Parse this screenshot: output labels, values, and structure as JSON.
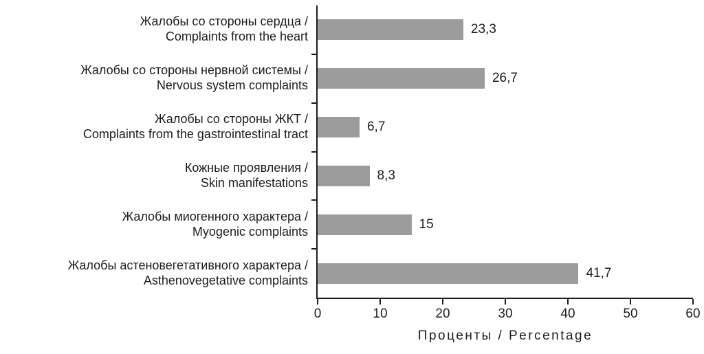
{
  "chart_data": {
    "type": "bar",
    "orientation": "horizontal",
    "categories": [
      [
        "Жалобы со стороны сердца /",
        "Complaints from the heart"
      ],
      [
        "Жалобы со стороны нервной системы /",
        "Nervous system complaints"
      ],
      [
        "Жалобы со стороны ЖКТ /",
        "Complaints from the gastrointestinal tract"
      ],
      [
        "Кожные проявления /",
        "Skin manifestations"
      ],
      [
        "Жалобы миогенного характера /",
        "Myogenic complaints"
      ],
      [
        "Жалобы астеновегетативного характера /",
        "Asthenovegetative complaints"
      ]
    ],
    "values": [
      23.3,
      26.7,
      6.7,
      8.3,
      15,
      41.7
    ],
    "value_labels": [
      "23,3",
      "26,7",
      "6,7",
      "8,3",
      "15",
      "41,7"
    ],
    "xlabel": "Проценты / Percentage",
    "xlim": [
      0,
      60
    ],
    "xticks": [
      0,
      10,
      20,
      30,
      40,
      50,
      60
    ],
    "bar_color": "#9c9c9c",
    "axis_color": "#1c1c1c",
    "text_color": "#1c1c1c",
    "background_color": "#ffffff",
    "grid": false,
    "legend": false
  }
}
